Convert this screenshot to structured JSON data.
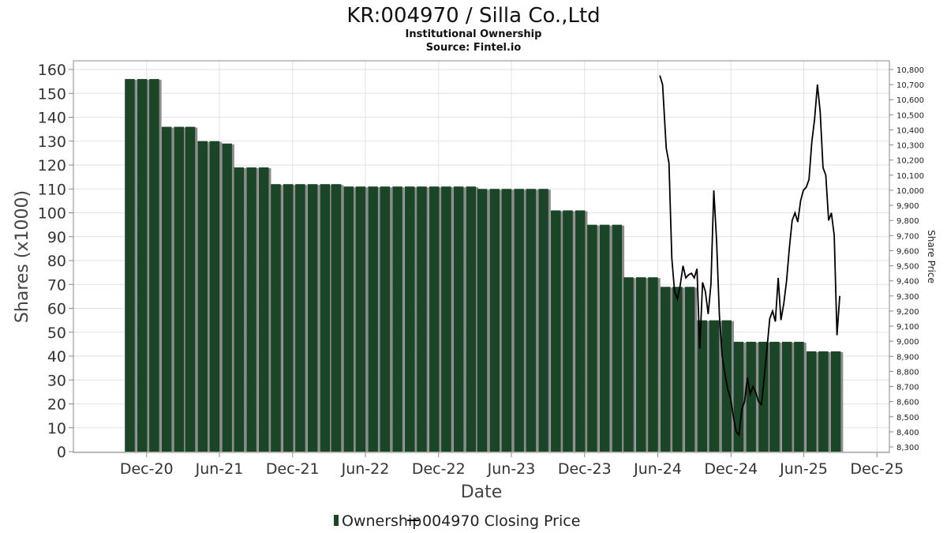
{
  "chart_data": {
    "type": "bar",
    "title": "KR:004970 / Silla Co.,Ltd",
    "subtitle": "Institutional Ownership",
    "source": "Source: Fintel.io",
    "xlabel": "Date",
    "ylabel": "Shares (x1000)",
    "y2label": "Share Price",
    "ylim": [
      0,
      160
    ],
    "y2lim": [
      8300,
      10800
    ],
    "yticks": [
      "0",
      "10",
      "20",
      "30",
      "40",
      "50",
      "60",
      "70",
      "80",
      "90",
      "100",
      "110",
      "120",
      "130",
      "140",
      "150",
      "160"
    ],
    "y2ticks": [
      "8,300",
      "8,400",
      "8,500",
      "8,600",
      "8,700",
      "8,800",
      "8,900",
      "9,000",
      "9,100",
      "9,200",
      "9,300",
      "9,400",
      "9,500",
      "9,600",
      "9,700",
      "9,800",
      "9,900",
      "10,000",
      "10,100",
      "10,200",
      "10,300",
      "10,400",
      "10,500",
      "10,600",
      "10,700",
      "10,800"
    ],
    "xticks": [
      "Dec-20",
      "Jun-21",
      "Dec-21",
      "Jun-22",
      "Dec-22",
      "Jun-23",
      "Dec-23",
      "Jun-24",
      "Dec-24",
      "Jun-25",
      "Dec-25"
    ],
    "xtick_dates": [
      "2020-12-01",
      "2021-06-01",
      "2021-12-01",
      "2022-06-01",
      "2022-12-01",
      "2023-06-01",
      "2023-12-01",
      "2024-06-01",
      "2024-12-01",
      "2025-06-01",
      "2025-12-01"
    ],
    "xlim": [
      "2020-06-01",
      "2026-01-01"
    ],
    "grid": true,
    "legend_position": "bottom",
    "series": [
      {
        "name": "Ownership",
        "color": "#1a4527",
        "style": "bar",
        "dates": [
          "2020-10-20",
          "2020-11-20",
          "2020-12-20",
          "2021-01-20",
          "2021-02-20",
          "2021-03-20",
          "2021-04-20",
          "2021-05-20",
          "2021-06-20",
          "2021-07-20",
          "2021-08-20",
          "2021-09-20",
          "2021-10-20",
          "2021-11-20",
          "2021-12-20",
          "2022-01-20",
          "2022-02-20",
          "2022-03-20",
          "2022-04-20",
          "2022-05-20",
          "2022-06-20",
          "2022-07-20",
          "2022-08-20",
          "2022-09-20",
          "2022-10-20",
          "2022-11-20",
          "2022-12-20",
          "2023-01-20",
          "2023-02-20",
          "2023-03-20",
          "2023-04-20",
          "2023-05-20",
          "2023-06-20",
          "2023-07-20",
          "2023-08-20",
          "2023-09-20",
          "2023-10-20",
          "2023-11-20",
          "2023-12-20",
          "2024-01-20",
          "2024-02-20",
          "2024-03-20",
          "2024-04-20",
          "2024-05-20",
          "2024-06-20",
          "2024-07-20",
          "2024-08-20",
          "2024-09-20",
          "2024-10-20",
          "2024-11-20",
          "2024-12-20",
          "2025-01-20",
          "2025-02-20",
          "2025-03-20",
          "2025-04-20",
          "2025-05-20",
          "2025-06-20",
          "2025-07-20",
          "2025-08-20"
        ],
        "values": [
          156,
          156,
          156,
          136,
          136,
          136,
          130,
          130,
          129,
          119,
          119,
          119,
          112,
          112,
          112,
          112,
          112,
          112,
          111,
          111,
          111,
          111,
          111,
          111,
          111,
          111,
          111,
          111,
          111,
          110,
          110,
          110,
          110,
          110,
          110,
          101,
          101,
          101,
          95,
          95,
          95,
          73,
          73,
          73,
          69,
          69,
          69,
          55,
          55,
          55,
          46,
          46,
          46,
          46,
          46,
          46,
          42,
          42,
          42
        ]
      },
      {
        "name": "004970 Closing Price",
        "color": "#000000",
        "style": "line",
        "dates": [
          "2024-06-06",
          "2024-06-13",
          "2024-06-22",
          "2024-06-29",
          "2024-07-06",
          "2024-07-13",
          "2024-07-20",
          "2024-07-27",
          "2024-08-03",
          "2024-08-10",
          "2024-08-17",
          "2024-08-24",
          "2024-08-31",
          "2024-09-07",
          "2024-09-14",
          "2024-09-21",
          "2024-09-28",
          "2024-10-05",
          "2024-10-12",
          "2024-10-19",
          "2024-10-26",
          "2024-11-02",
          "2024-11-09",
          "2024-11-16",
          "2024-11-23",
          "2024-11-30",
          "2024-12-07",
          "2024-12-14",
          "2024-12-21",
          "2024-12-28",
          "2025-01-04",
          "2025-01-11",
          "2025-01-18",
          "2025-01-25",
          "2025-02-01",
          "2025-02-08",
          "2025-02-15",
          "2025-02-22",
          "2025-03-01",
          "2025-03-08",
          "2025-03-15",
          "2025-03-22",
          "2025-03-29",
          "2025-04-05",
          "2025-04-12",
          "2025-04-19",
          "2025-04-26",
          "2025-05-03",
          "2025-05-10",
          "2025-05-17",
          "2025-05-24",
          "2025-05-31",
          "2025-06-07",
          "2025-06-14",
          "2025-06-21",
          "2025-06-28",
          "2025-07-05",
          "2025-07-12",
          "2025-07-19",
          "2025-07-26",
          "2025-08-02",
          "2025-08-09",
          "2025-08-16",
          "2025-08-23",
          "2025-08-30"
        ],
        "values": [
          10760,
          10700,
          10280,
          10180,
          9550,
          9330,
          9280,
          9370,
          9500,
          9420,
          9440,
          9450,
          9420,
          9480,
          8950,
          9390,
          9330,
          9180,
          9380,
          10000,
          9670,
          9170,
          8900,
          8780,
          8680,
          8620,
          8500,
          8400,
          8380,
          8550,
          8600,
          8760,
          8650,
          8700,
          8660,
          8600,
          8580,
          8760,
          8950,
          9150,
          9200,
          9130,
          9420,
          9140,
          9250,
          9400,
          9620,
          9800,
          9850,
          9790,
          9930,
          10000,
          10020,
          10070,
          10320,
          10470,
          10700,
          10520,
          10150,
          10100,
          9800,
          9850,
          9700,
          9040,
          9300
        ]
      }
    ]
  }
}
